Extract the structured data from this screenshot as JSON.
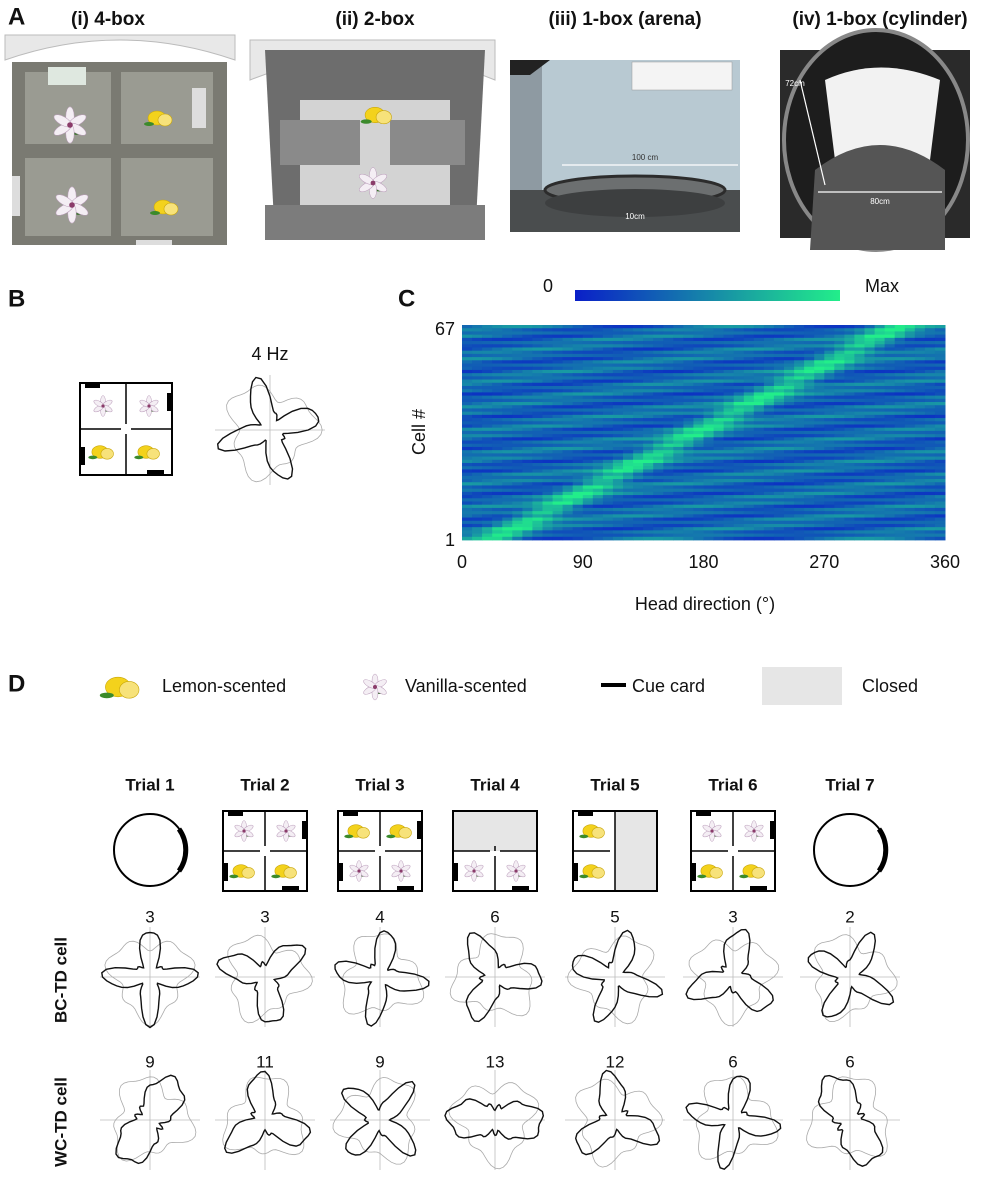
{
  "panels": {
    "a": {
      "label": "A",
      "titles": [
        "(i) 4-box",
        "(ii) 2-box",
        "(iii) 1-box (arena)",
        "(iv) 1-box (cylinder)"
      ],
      "dims": [
        "100 cm",
        "10cm",
        "72cm",
        "80cm"
      ]
    },
    "b": {
      "label": "B",
      "rate": "4 Hz"
    },
    "c": {
      "label": "C",
      "colorbar": [
        "0",
        "Max"
      ],
      "y_label": "Cell #",
      "yticks": [
        67,
        1
      ],
      "x_label": "Head direction (°)",
      "xticks": [
        0,
        90,
        180,
        270,
        360
      ]
    },
    "d": {
      "label": "D",
      "legend": [
        "Lemon-scented",
        "Vanilla-scented",
        "Cue card",
        "Closed"
      ],
      "trials": [
        "Trial 1",
        "Trial 2",
        "Trial 3",
        "Trial 4",
        "Trial 5",
        "Trial 6",
        "Trial 7"
      ],
      "rows": [
        {
          "label": "BC-TD cell",
          "peaks": [
            3,
            3,
            4,
            6,
            5,
            3,
            2
          ]
        },
        {
          "label": "WC-TD cell",
          "peaks": [
            9,
            11,
            9,
            13,
            12,
            6,
            6
          ]
        }
      ]
    }
  }
}
